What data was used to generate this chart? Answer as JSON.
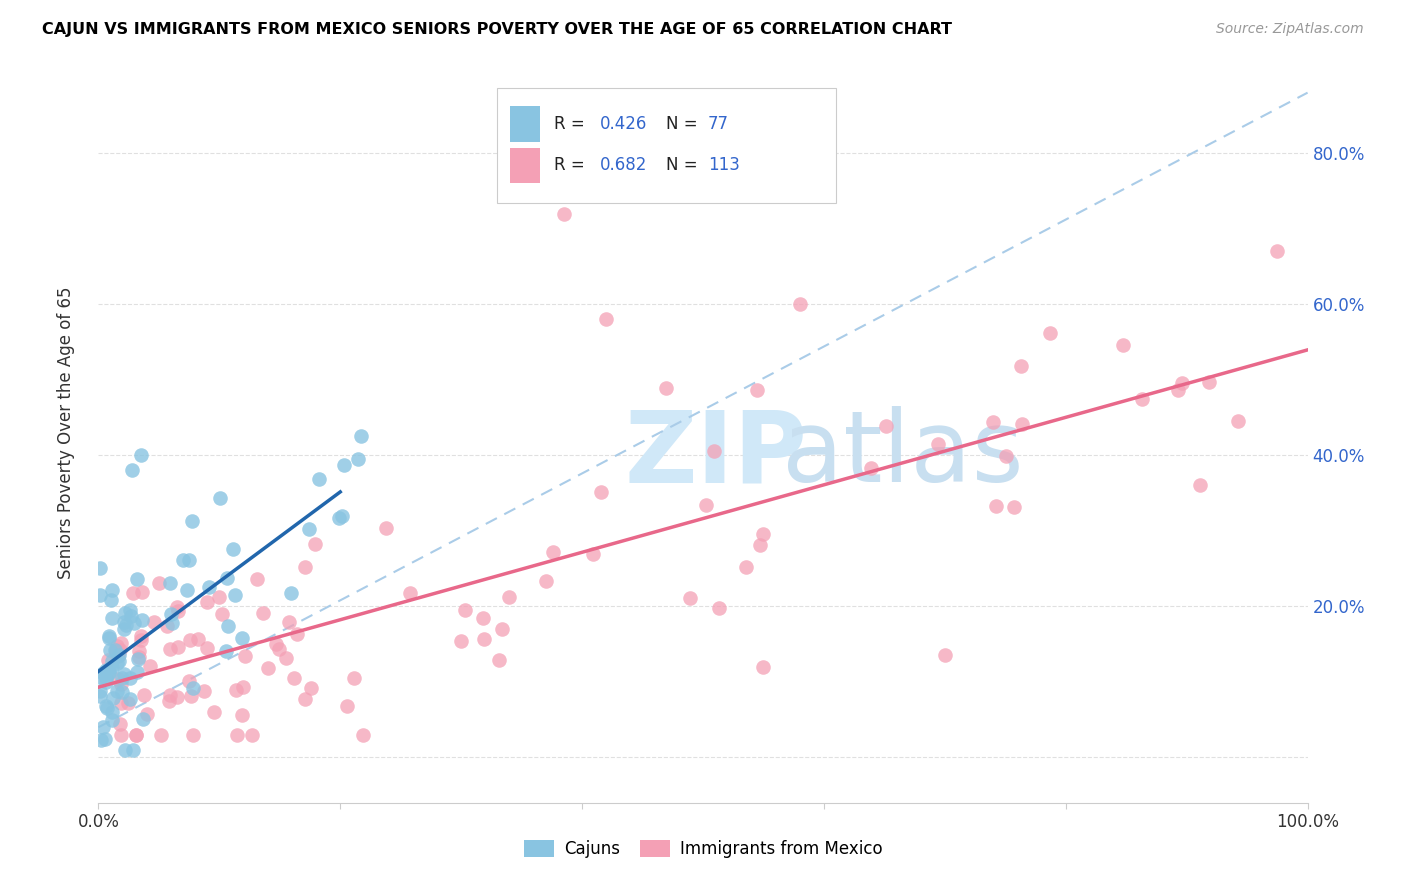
{
  "title": "CAJUN VS IMMIGRANTS FROM MEXICO SENIORS POVERTY OVER THE AGE OF 65 CORRELATION CHART",
  "source": "Source: ZipAtlas.com",
  "ylabel": "Seniors Poverty Over the Age of 65",
  "cajun_R": 0.426,
  "cajun_N": 77,
  "mexico_R": 0.682,
  "mexico_N": 113,
  "cajun_color": "#89c4e1",
  "mexico_color": "#f4a0b5",
  "cajun_line_color": "#2166ac",
  "mexico_line_color": "#e8688a",
  "dashed_line_color": "#aacce8",
  "background_color": "#ffffff",
  "watermark_zip_color": "#d0e8f8",
  "watermark_atlas_color": "#c8dff0",
  "legend_label_cajun": "Cajuns",
  "legend_label_mexico": "Immigrants from Mexico",
  "right_ytick_color": "#3366cc",
  "grid_color": "#dddddd",
  "legend_R_color": "#3366cc",
  "legend_N_color": "#3366cc"
}
